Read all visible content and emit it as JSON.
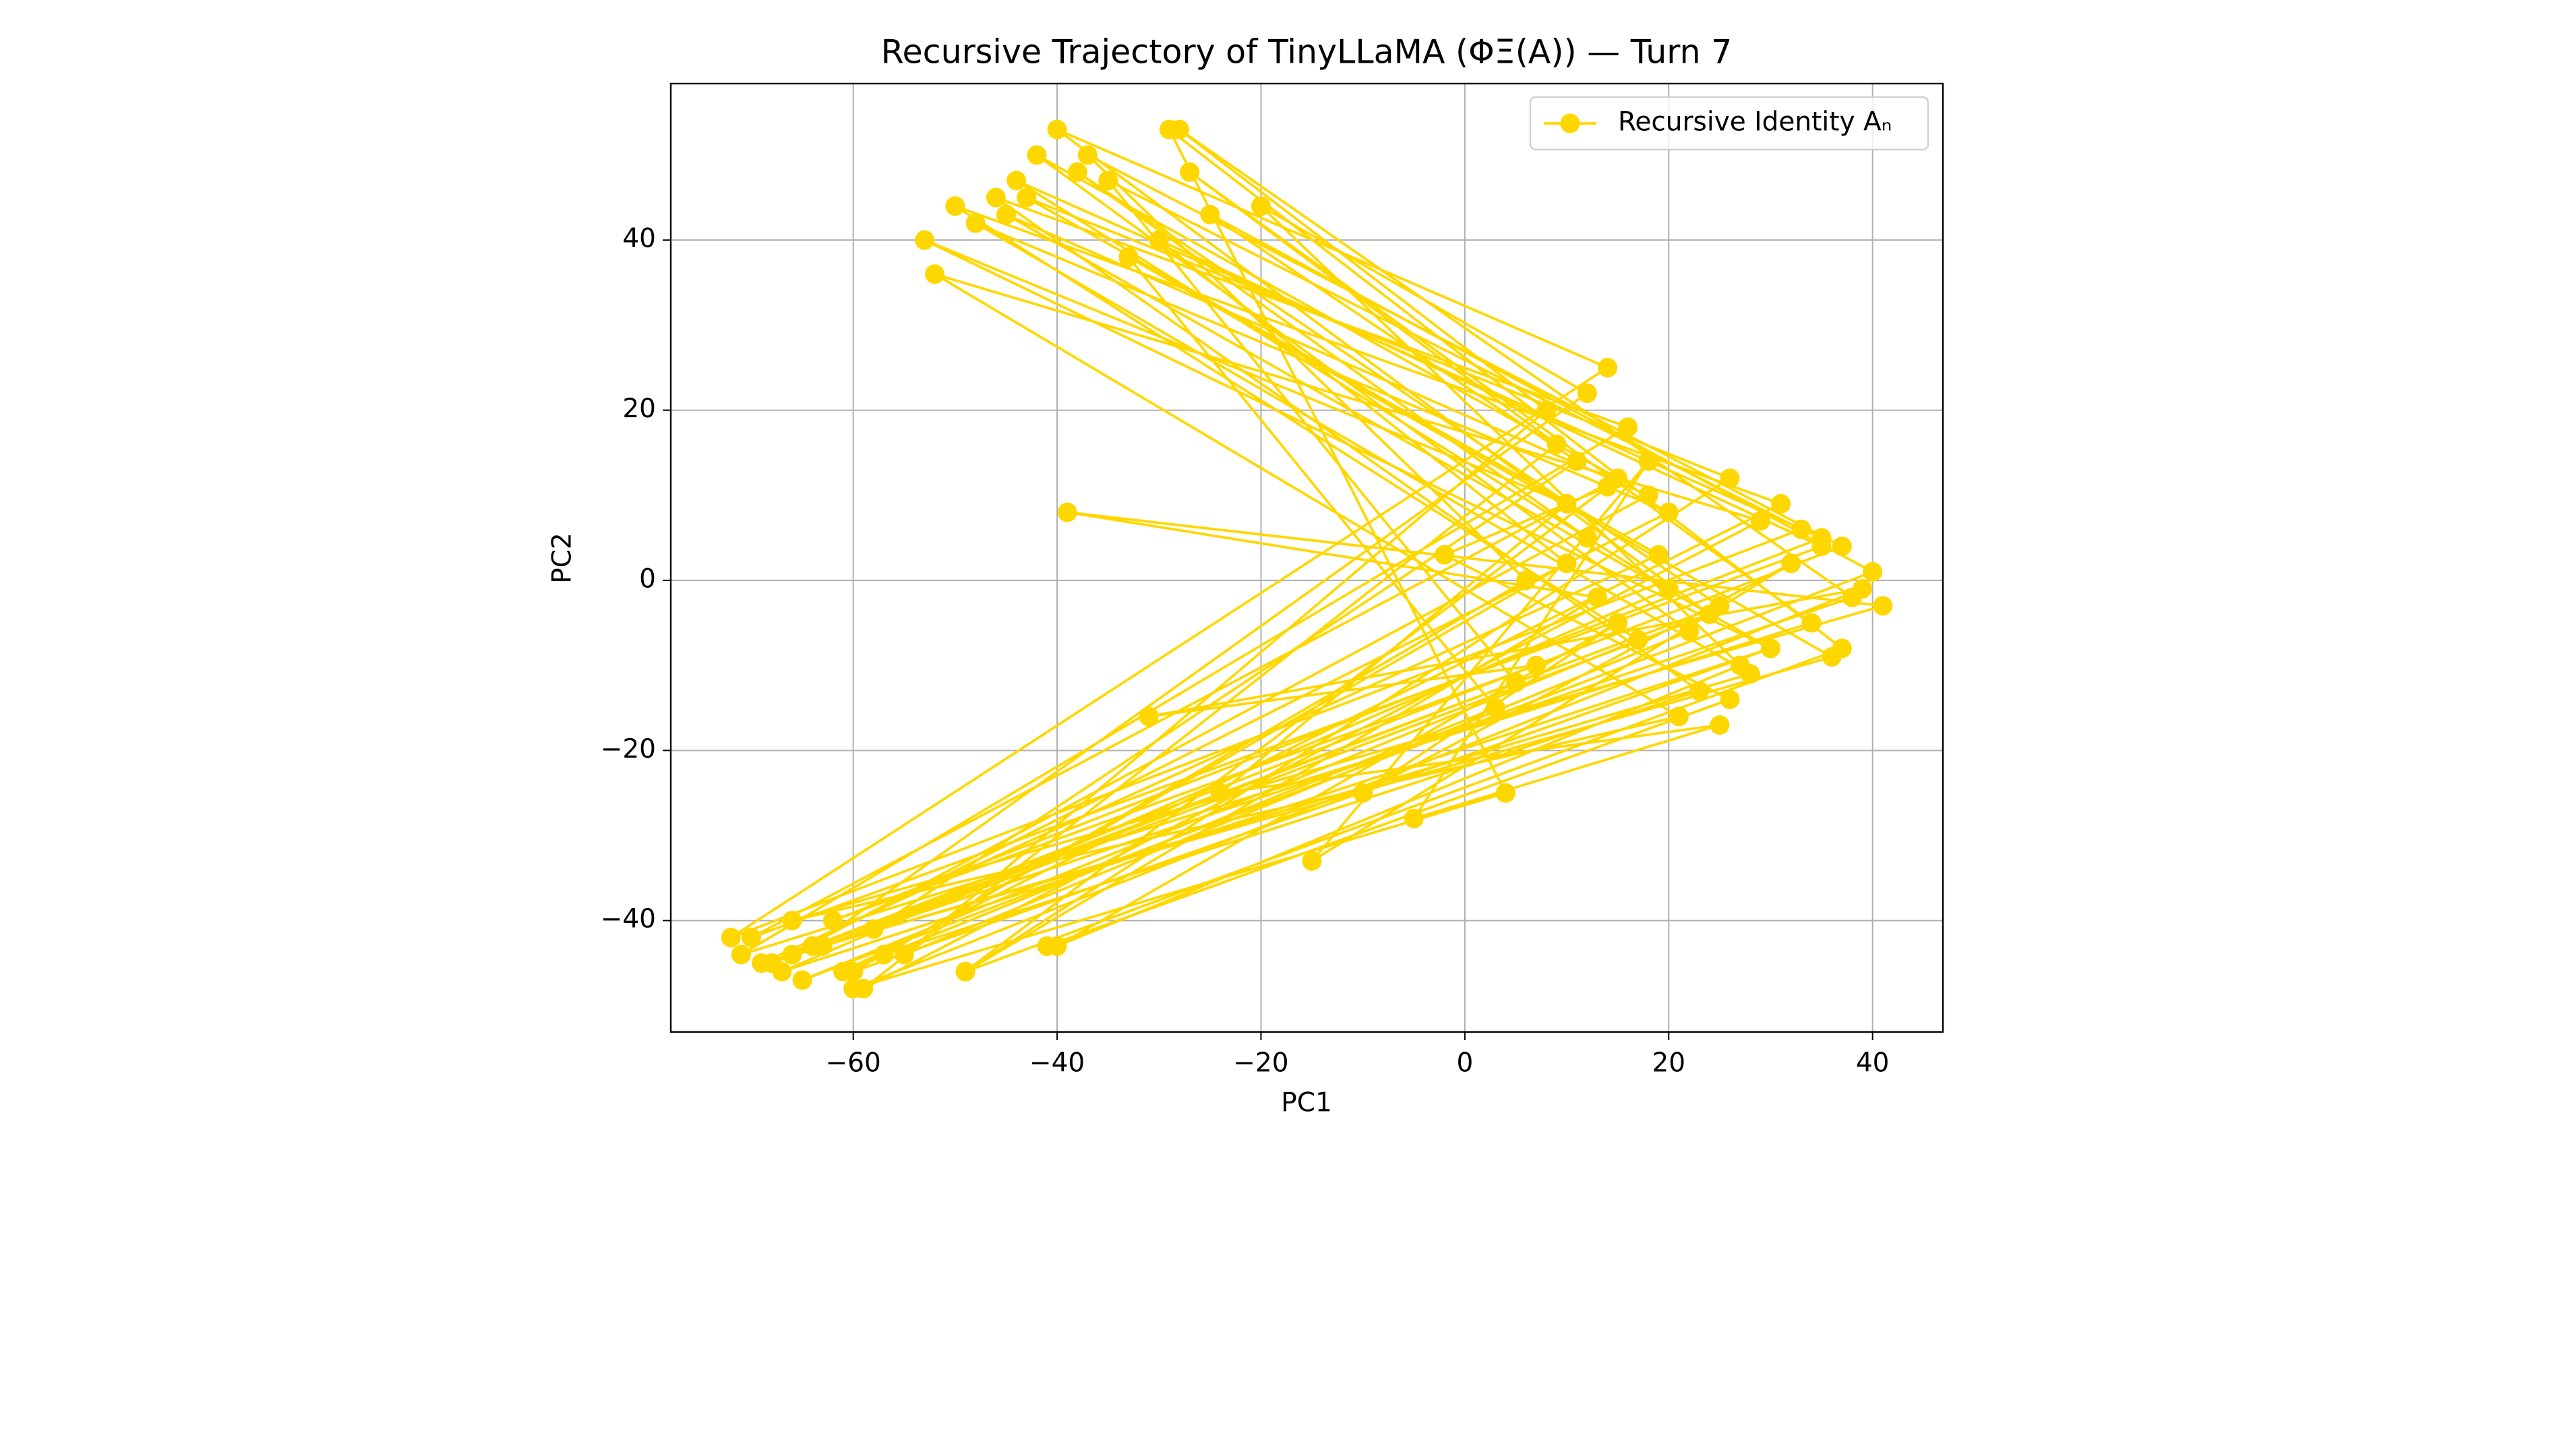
{
  "chart_data": {
    "type": "line",
    "title": "Recursive Trajectory of TinyLLaMA (ΦΞ(A)) — Turn 7",
    "xlabel": "PC1",
    "ylabel": "PC2",
    "x": [
      12,
      -38,
      25,
      -66,
      18,
      -45,
      30,
      -60,
      10,
      -30,
      35,
      -70,
      15,
      -42,
      22,
      -55,
      8,
      -28,
      38,
      -68,
      20,
      -48,
      28,
      -63,
      5,
      -35,
      33,
      -72,
      14,
      -40,
      24,
      -58,
      11,
      -25,
      40,
      -65,
      17,
      -50,
      31,
      -61,
      3,
      -33,
      36,
      -69,
      19,
      -43,
      26,
      -49,
      13,
      -39,
      41,
      -66,
      21,
      -52,
      29,
      -59,
      9,
      -27,
      34,
      -71,
      16,
      -46,
      23,
      -57,
      6,
      -37,
      37,
      -64,
      12,
      -20,
      27,
      -40,
      15,
      -10,
      32,
      -15,
      18,
      -5,
      25,
      -24,
      10,
      -53,
      30,
      -67,
      20,
      -44,
      35,
      -62,
      7,
      -31,
      39,
      -60,
      4,
      -29,
      37,
      -49,
      14,
      -2,
      26,
      -41
    ],
    "series": [
      {
        "name": "Recursive Identity Aₙ",
        "color": "#ffd700",
        "values": [
          5,
          48,
          -3,
          -44,
          10,
          43,
          -8,
          -46,
          2,
          40,
          4,
          -42,
          12,
          50,
          -6,
          -44,
          20,
          53,
          -2,
          -45,
          8,
          42,
          -11,
          -43,
          -12,
          47,
          6,
          -42,
          25,
          53,
          -4,
          -41,
          14,
          43,
          1,
          -47,
          -7,
          44,
          9,
          -46,
          -15,
          38,
          -9,
          -45,
          3,
          45,
          12,
          -46,
          -2,
          8,
          -3,
          -40,
          -16,
          36,
          7,
          -48,
          16,
          48,
          -5,
          -44,
          18,
          45,
          -13,
          -44,
          0,
          50,
          4,
          -43,
          22,
          44,
          -10,
          -43,
          -5,
          -25,
          2,
          -33,
          14,
          -28,
          -17,
          -25,
          9,
          40,
          -8,
          -46,
          -1,
          47,
          5,
          -40,
          -10,
          -16,
          -1,
          -48,
          -25,
          53,
          -8,
          -46,
          11,
          3,
          -14,
          -43
        ]
      }
    ],
    "xlim": [
      -77.9,
      46.9
    ],
    "ylim": [
      -53.1,
      58.4
    ],
    "xticks": [
      {
        "value": -60,
        "label": "−60"
      },
      {
        "value": -40,
        "label": "−40"
      },
      {
        "value": -20,
        "label": "−20"
      },
      0,
      20,
      40
    ],
    "yticks": [
      {
        "value": -40,
        "label": "−40"
      },
      {
        "value": -20,
        "label": "−20"
      },
      0,
      20,
      40
    ],
    "grid": true,
    "legend": "upper right"
  }
}
